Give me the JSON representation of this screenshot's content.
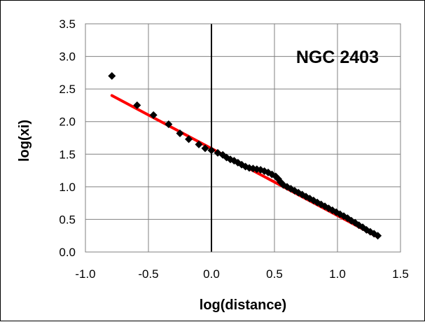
{
  "chart_data": {
    "type": "scatter",
    "title": "",
    "annotation": "NGC 2403",
    "xlabel": "log(distance)",
    "ylabel": "log(xi)",
    "xlim": [
      -1.0,
      1.5
    ],
    "ylim": [
      0.0,
      3.5
    ],
    "x_ticks": [
      "-1.0",
      "-0.5",
      "0.0",
      "0.5",
      "1.0",
      "1.5"
    ],
    "y_ticks": [
      "0.0",
      "0.5",
      "1.0",
      "1.5",
      "2.0",
      "2.5",
      "3.0",
      "3.5"
    ],
    "x_tick_values": [
      -1.0,
      -0.5,
      0.0,
      0.5,
      1.0,
      1.5
    ],
    "y_tick_values": [
      0.0,
      0.5,
      1.0,
      1.5,
      2.0,
      2.5,
      3.0,
      3.5
    ],
    "grid": true,
    "legend": "none",
    "colors": {
      "points": "#000000",
      "fit_line": "#ff0000",
      "grid": "#808080",
      "zero_line": "#000000"
    },
    "points": [
      [
        -0.79,
        2.7
      ],
      [
        -0.59,
        2.25
      ],
      [
        -0.46,
        2.1
      ],
      [
        -0.34,
        1.96
      ],
      [
        -0.25,
        1.82
      ],
      [
        -0.18,
        1.73
      ],
      [
        -0.1,
        1.65
      ],
      [
        -0.05,
        1.59
      ],
      [
        0.0,
        1.56
      ],
      [
        0.05,
        1.52
      ],
      [
        0.09,
        1.49
      ],
      [
        0.12,
        1.45
      ],
      [
        0.15,
        1.42
      ],
      [
        0.18,
        1.4
      ],
      [
        0.21,
        1.37
      ],
      [
        0.24,
        1.34
      ],
      [
        0.27,
        1.31
      ],
      [
        0.3,
        1.29
      ],
      [
        0.33,
        1.28
      ],
      [
        0.36,
        1.27
      ],
      [
        0.39,
        1.26
      ],
      [
        0.42,
        1.24
      ],
      [
        0.45,
        1.22
      ],
      [
        0.48,
        1.19
      ],
      [
        0.51,
        1.16
      ],
      [
        0.53,
        1.12
      ],
      [
        0.55,
        1.07
      ],
      [
        0.57,
        1.03
      ],
      [
        0.6,
        1.0
      ],
      [
        0.63,
        0.97
      ],
      [
        0.66,
        0.94
      ],
      [
        0.69,
        0.91
      ],
      [
        0.72,
        0.88
      ],
      [
        0.75,
        0.85
      ],
      [
        0.78,
        0.82
      ],
      [
        0.81,
        0.79
      ],
      [
        0.84,
        0.76
      ],
      [
        0.87,
        0.73
      ],
      [
        0.9,
        0.7
      ],
      [
        0.93,
        0.67
      ],
      [
        0.96,
        0.64
      ],
      [
        0.99,
        0.61
      ],
      [
        1.02,
        0.58
      ],
      [
        1.05,
        0.55
      ],
      [
        1.08,
        0.52
      ],
      [
        1.11,
        0.48
      ],
      [
        1.14,
        0.45
      ],
      [
        1.17,
        0.41
      ],
      [
        1.2,
        0.38
      ],
      [
        1.23,
        0.34
      ],
      [
        1.26,
        0.31
      ],
      [
        1.29,
        0.28
      ],
      [
        1.32,
        0.25
      ]
    ],
    "fit_line": {
      "x": [
        -0.79,
        1.32
      ],
      "y": [
        2.4,
        0.23
      ]
    }
  }
}
